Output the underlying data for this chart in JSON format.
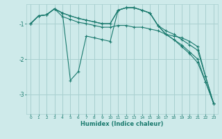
{
  "xlabel": "Humidex (Indice chaleur)",
  "bg_color": "#ceeaea",
  "grid_color": "#a8d0d0",
  "line_color": "#1a7a6e",
  "xlim": [
    -0.5,
    23.5
  ],
  "ylim": [
    -3.55,
    -0.45
  ],
  "yticks": [
    -1,
    -2,
    -3
  ],
  "x_ticks": [
    0,
    1,
    2,
    3,
    4,
    5,
    6,
    7,
    8,
    9,
    10,
    11,
    12,
    13,
    14,
    15,
    16,
    17,
    18,
    19,
    20,
    21,
    22,
    23
  ],
  "series": {
    "xs": [
      0,
      1,
      2,
      3,
      4,
      5,
      6,
      7,
      8,
      9,
      10,
      11,
      12,
      13,
      14,
      15,
      16,
      17,
      18,
      19,
      20,
      21,
      22,
      23
    ],
    "line1": [
      -1.0,
      -0.78,
      -0.75,
      -0.58,
      -0.7,
      -2.6,
      -2.35,
      -1.35,
      -1.4,
      -1.45,
      -1.5,
      -0.62,
      -0.55,
      -0.55,
      -0.62,
      -0.7,
      -1.05,
      -1.3,
      -1.35,
      -1.4,
      -1.5,
      -1.65,
      -2.5,
      -3.25
    ],
    "line2": [
      -1.0,
      -0.78,
      -0.75,
      -0.58,
      -0.7,
      -0.78,
      -0.85,
      -0.9,
      -0.95,
      -1.0,
      -1.0,
      -0.62,
      -0.55,
      -0.55,
      -0.62,
      -0.7,
      -1.05,
      -1.2,
      -1.3,
      -1.45,
      -1.6,
      -1.75,
      -2.5,
      -3.25
    ],
    "line3": [
      -1.0,
      -0.78,
      -0.75,
      -0.58,
      -0.7,
      -0.78,
      -0.85,
      -0.9,
      -0.95,
      -1.0,
      -1.0,
      -0.62,
      -0.55,
      -0.55,
      -0.62,
      -0.7,
      -1.05,
      -1.3,
      -1.45,
      -1.6,
      -1.8,
      -2.0,
      -2.65,
      -3.25
    ],
    "line4": [
      -1.0,
      -0.78,
      -0.75,
      -0.58,
      -0.8,
      -0.88,
      -0.96,
      -1.0,
      -1.05,
      -1.1,
      -1.1,
      -1.05,
      -1.05,
      -1.1,
      -1.1,
      -1.15,
      -1.2,
      -1.3,
      -1.45,
      -1.65,
      -1.85,
      -2.1,
      -2.65,
      -3.25
    ]
  }
}
